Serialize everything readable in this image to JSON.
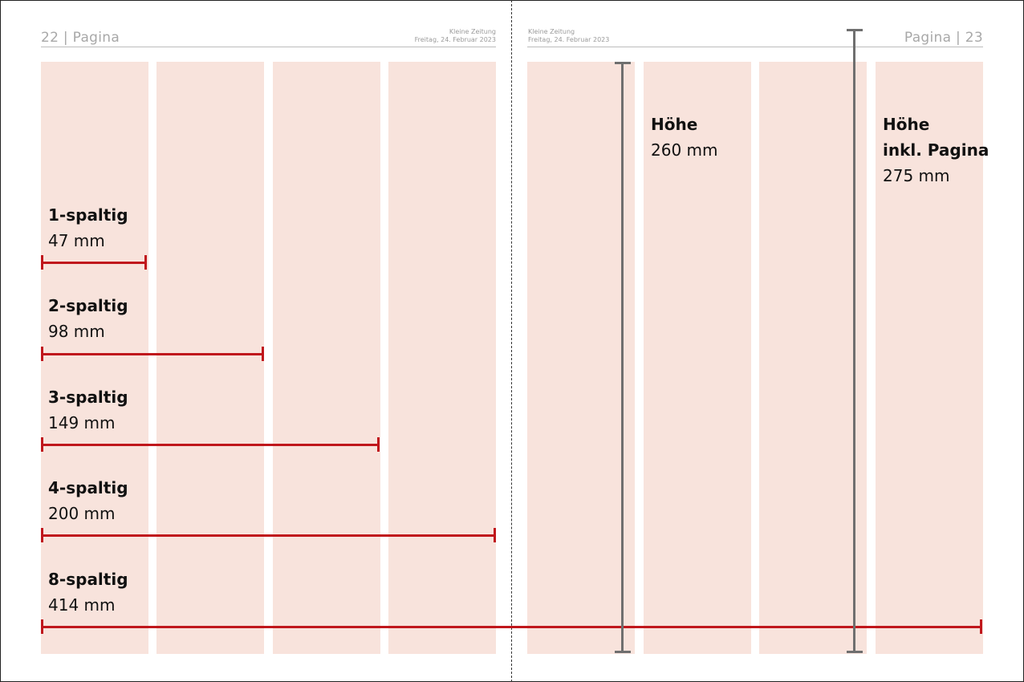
{
  "header": {
    "left_pagina": "22 | Pagina",
    "right_pagina": "Pagina | 23",
    "paper_name": "Kleine Zeitung",
    "date": "Freitag, 24. Februar 2023"
  },
  "widths": [
    {
      "label": "1-spaltig",
      "value": "47 mm"
    },
    {
      "label": "2-spaltig",
      "value": "98 mm"
    },
    {
      "label": "3-spaltig",
      "value": "149 mm"
    },
    {
      "label": "4-spaltig",
      "value": "200 mm"
    },
    {
      "label": "8-spaltig",
      "value": "414 mm"
    }
  ],
  "heights": [
    {
      "label": "Höhe",
      "value": "260 mm"
    },
    {
      "label1": "Höhe",
      "label2": "inkl. Pagina",
      "value": "275 mm"
    }
  ],
  "colors": {
    "column": "#f8e3dc",
    "width_marker": "#c0171c",
    "height_marker": "#6f6f6f"
  }
}
